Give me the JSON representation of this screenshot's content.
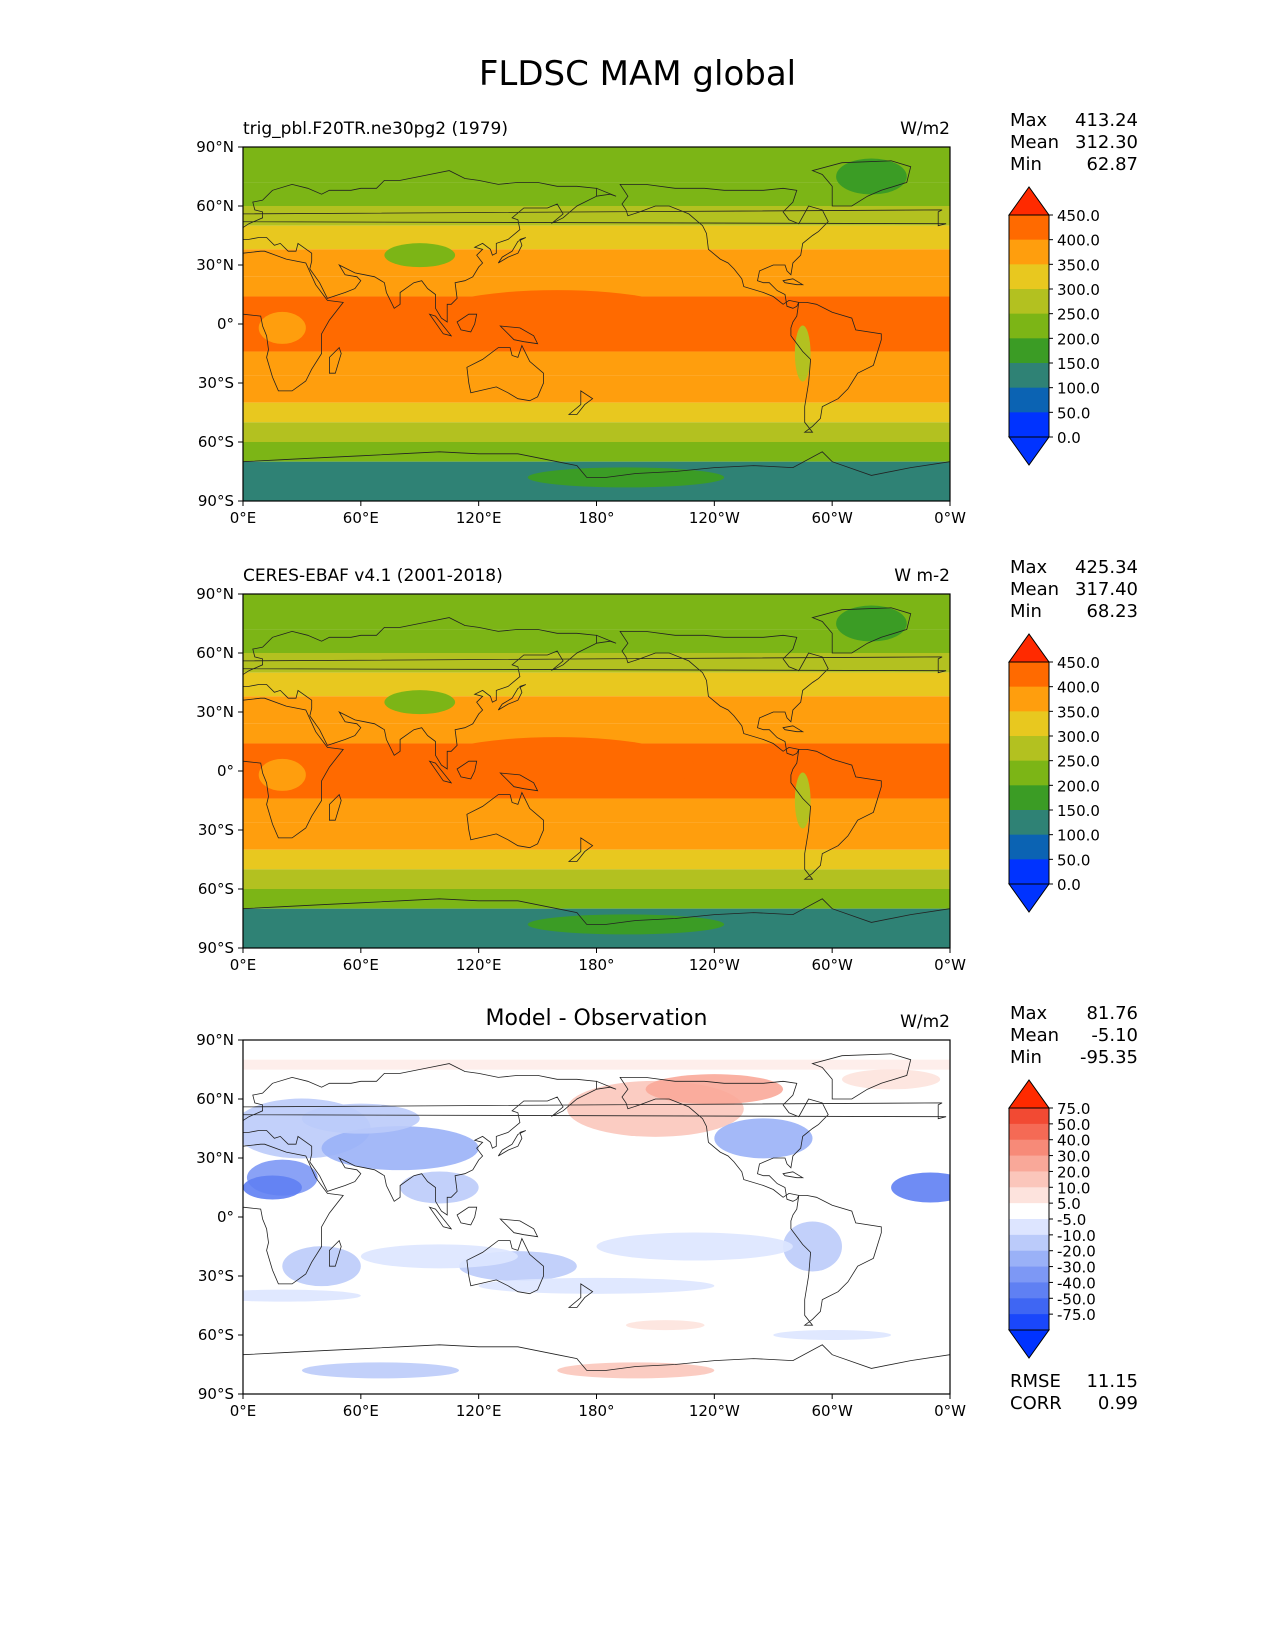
{
  "title": "FLDSC MAM global",
  "lon_ticks": [
    "0°E",
    "60°E",
    "120°E",
    "180°",
    "120°W",
    "60°W",
    "0°W"
  ],
  "lat_ticks": [
    "90°N",
    "60°N",
    "30°N",
    "0°",
    "30°S",
    "60°S",
    "90°S"
  ],
  "panels": [
    {
      "title_left": "trig_pbl.F20TR.ne30pg2 (1979)",
      "title_center": "",
      "units": "W/m2",
      "stats": {
        "max_label": "Max",
        "max": "413.24",
        "mean_label": "Mean",
        "mean": "312.30",
        "min_label": "Min",
        "min": "62.87"
      },
      "colorbar": {
        "levels": [
          "450.0",
          "400.0",
          "350.0",
          "300.0",
          "250.0",
          "200.0",
          "150.0",
          "100.0",
          "50.0",
          "0.0"
        ],
        "colors": [
          "#ff2a00",
          "#ff6a00",
          "#ff9e0d",
          "#e8c81f",
          "#b3c120",
          "#7cb516",
          "#3b9c25",
          "#2f8275",
          "#0b63b3",
          "#0033ff",
          "#0033ff"
        ]
      }
    },
    {
      "title_left": "CERES-EBAF v4.1 (2001-2018)",
      "title_center": "",
      "units": "W m-2",
      "stats": {
        "max_label": "Max",
        "max": "425.34",
        "mean_label": "Mean",
        "mean": "317.40",
        "min_label": "Min",
        "min": "68.23"
      },
      "colorbar": {
        "levels": [
          "450.0",
          "400.0",
          "350.0",
          "300.0",
          "250.0",
          "200.0",
          "150.0",
          "100.0",
          "50.0",
          "0.0"
        ],
        "colors": [
          "#ff2a00",
          "#ff6a00",
          "#ff9e0d",
          "#e8c81f",
          "#b3c120",
          "#7cb516",
          "#3b9c25",
          "#2f8275",
          "#0b63b3",
          "#0033ff",
          "#0033ff"
        ]
      }
    },
    {
      "title_left": "",
      "title_center": "Model - Observation",
      "units": "W/m2",
      "stats": {
        "max_label": "Max",
        "max": "81.76",
        "mean_label": "Mean",
        "mean": "-5.10",
        "min_label": "Min",
        "min": "-95.35"
      },
      "rmse_label": "RMSE",
      "rmse": "11.15",
      "corr_label": "CORR",
      "corr": "0.99",
      "colorbar": {
        "levels": [
          "75.0",
          "50.0",
          "40.0",
          "30.0",
          "20.0",
          "10.0",
          "5.0",
          "-5.0",
          "-10.0",
          "-20.0",
          "-30.0",
          "-40.0",
          "-50.0",
          "-75.0"
        ],
        "colors": [
          "#ff2a00",
          "#f24a33",
          "#f56a55",
          "#f78a78",
          "#f9a899",
          "#fbc6bb",
          "#fde3dd",
          "#ffffff",
          "#dde5ff",
          "#bbcbfa",
          "#9ab1f7",
          "#7d98f5",
          "#5f80f3",
          "#3f66f3",
          "#1a47fb",
          "#0033ff"
        ]
      }
    }
  ]
}
